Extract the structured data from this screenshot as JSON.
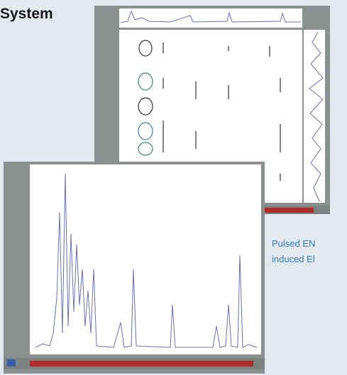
{
  "heading": "System",
  "caption": {
    "line1": "Pulsed EN",
    "line2": "induced El"
  }
}
